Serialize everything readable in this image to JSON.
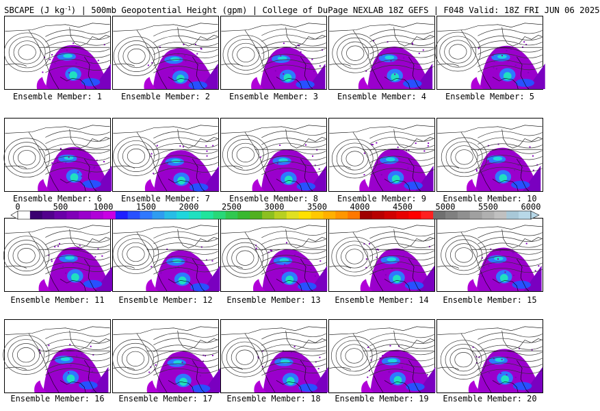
{
  "title": {
    "prefix": "SBCAPE (J kg",
    "superscript": "-1",
    "suffix": ") | 500mb Geopotential Height (gpm) | College of DuPage NEXLAB 18Z GEFS | F048 Valid: 18Z FRI JUN 06 2025"
  },
  "members": [
    {
      "label": "Ensemble Member: 1"
    },
    {
      "label": "Ensemble Member: 2"
    },
    {
      "label": "Ensemble Member: 3"
    },
    {
      "label": "Ensemble Member: 4"
    },
    {
      "label": "Ensemble Member: 5"
    },
    {
      "label": "Ensemble Member: 6"
    },
    {
      "label": "Ensemble Member: 7"
    },
    {
      "label": "Ensemble Member: 8"
    },
    {
      "label": "Ensemble Member: 9"
    },
    {
      "label": "Ensemble Member: 10"
    },
    {
      "label": "Ensemble Member: 11"
    },
    {
      "label": "Ensemble Member: 12"
    },
    {
      "label": "Ensemble Member: 13"
    },
    {
      "label": "Ensemble Member: 14"
    },
    {
      "label": "Ensemble Member: 15"
    },
    {
      "label": "Ensemble Member: 16"
    },
    {
      "label": "Ensemble Member: 17"
    },
    {
      "label": "Ensemble Member: 18"
    },
    {
      "label": "Ensemble Member: 19"
    },
    {
      "label": "Ensemble Member: 20"
    }
  ],
  "colorbar": {
    "min": 0,
    "max": 6000,
    "tick_labels": [
      "0",
      "500",
      "1000",
      "1500",
      "2000",
      "2500",
      "3000",
      "3500",
      "4000",
      "4500",
      "5000",
      "5500",
      "6000"
    ],
    "colors": [
      "#ffffff",
      "#3a0070",
      "#52008c",
      "#6a00a8",
      "#8000b8",
      "#9a00cc",
      "#b000d8",
      "#c800e4",
      "#1f1fff",
      "#2850ff",
      "#2f78ff",
      "#2f9cf0",
      "#28bde6",
      "#20d6dc",
      "#20e0c0",
      "#20e49c",
      "#28d878",
      "#30c850",
      "#38b830",
      "#50b020",
      "#8cc020",
      "#b8d020",
      "#e0e020",
      "#ffe000",
      "#ffc800",
      "#ffb000",
      "#ff9600",
      "#ff7800",
      "#a00000",
      "#b80000",
      "#d00000",
      "#e80000",
      "#ff0000",
      "#ff2020",
      "#707070",
      "#808080",
      "#909090",
      "#a0a0a0",
      "#b0b0b0",
      "#c0c0c0",
      "#a8c8d8",
      "#b8d8e8"
    ]
  }
}
